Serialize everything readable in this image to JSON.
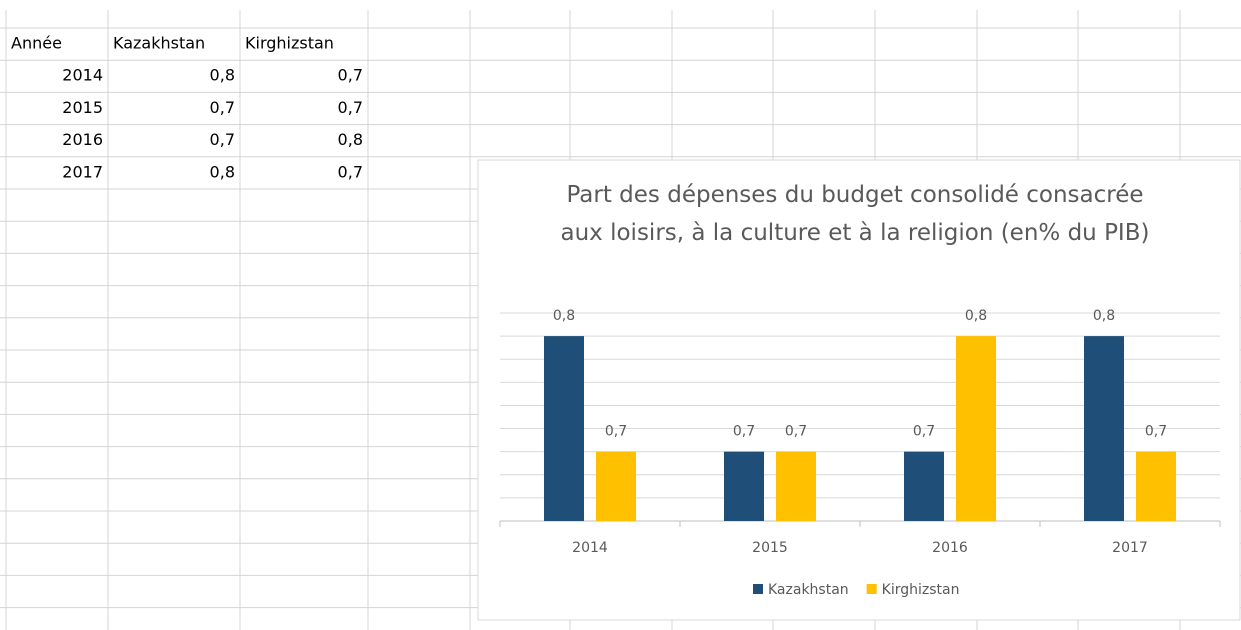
{
  "table": {
    "header": [
      "Année",
      "Kazakhstan",
      "Kirghizstan"
    ],
    "rows": [
      [
        "2014",
        "0,8",
        "0,7"
      ],
      [
        "2015",
        "0,7",
        "0,7"
      ],
      [
        "2016",
        "0,7",
        "0,8"
      ],
      [
        "2017",
        "0,8",
        "0,7"
      ]
    ]
  },
  "chart_data": {
    "type": "bar",
    "title": "Part des dépenses du budget consolidé consacrée aux loisirs, à la culture et à la religion (en% du PIB)",
    "categories": [
      "2014",
      "2015",
      "2016",
      "2017"
    ],
    "series": [
      {
        "name": "Kazakhstan",
        "color": "#1f4e79",
        "values": [
          0.8,
          0.7,
          0.7,
          0.8
        ],
        "value_labels": [
          "0,8",
          "0,7",
          "0,7",
          "0,8"
        ]
      },
      {
        "name": "Kirghizstan",
        "color": "#ffc000",
        "values": [
          0.7,
          0.7,
          0.8,
          0.7
        ],
        "value_labels": [
          "0,7",
          "0,7",
          "0,8",
          "0,7"
        ]
      }
    ],
    "ylim": [
      0.64,
      0.82
    ],
    "yticks": [
      0.64,
      0.66,
      0.68,
      0.7,
      0.72,
      0.74,
      0.76,
      0.78,
      0.8,
      0.82
    ],
    "grid": true,
    "legend": "bottom"
  }
}
